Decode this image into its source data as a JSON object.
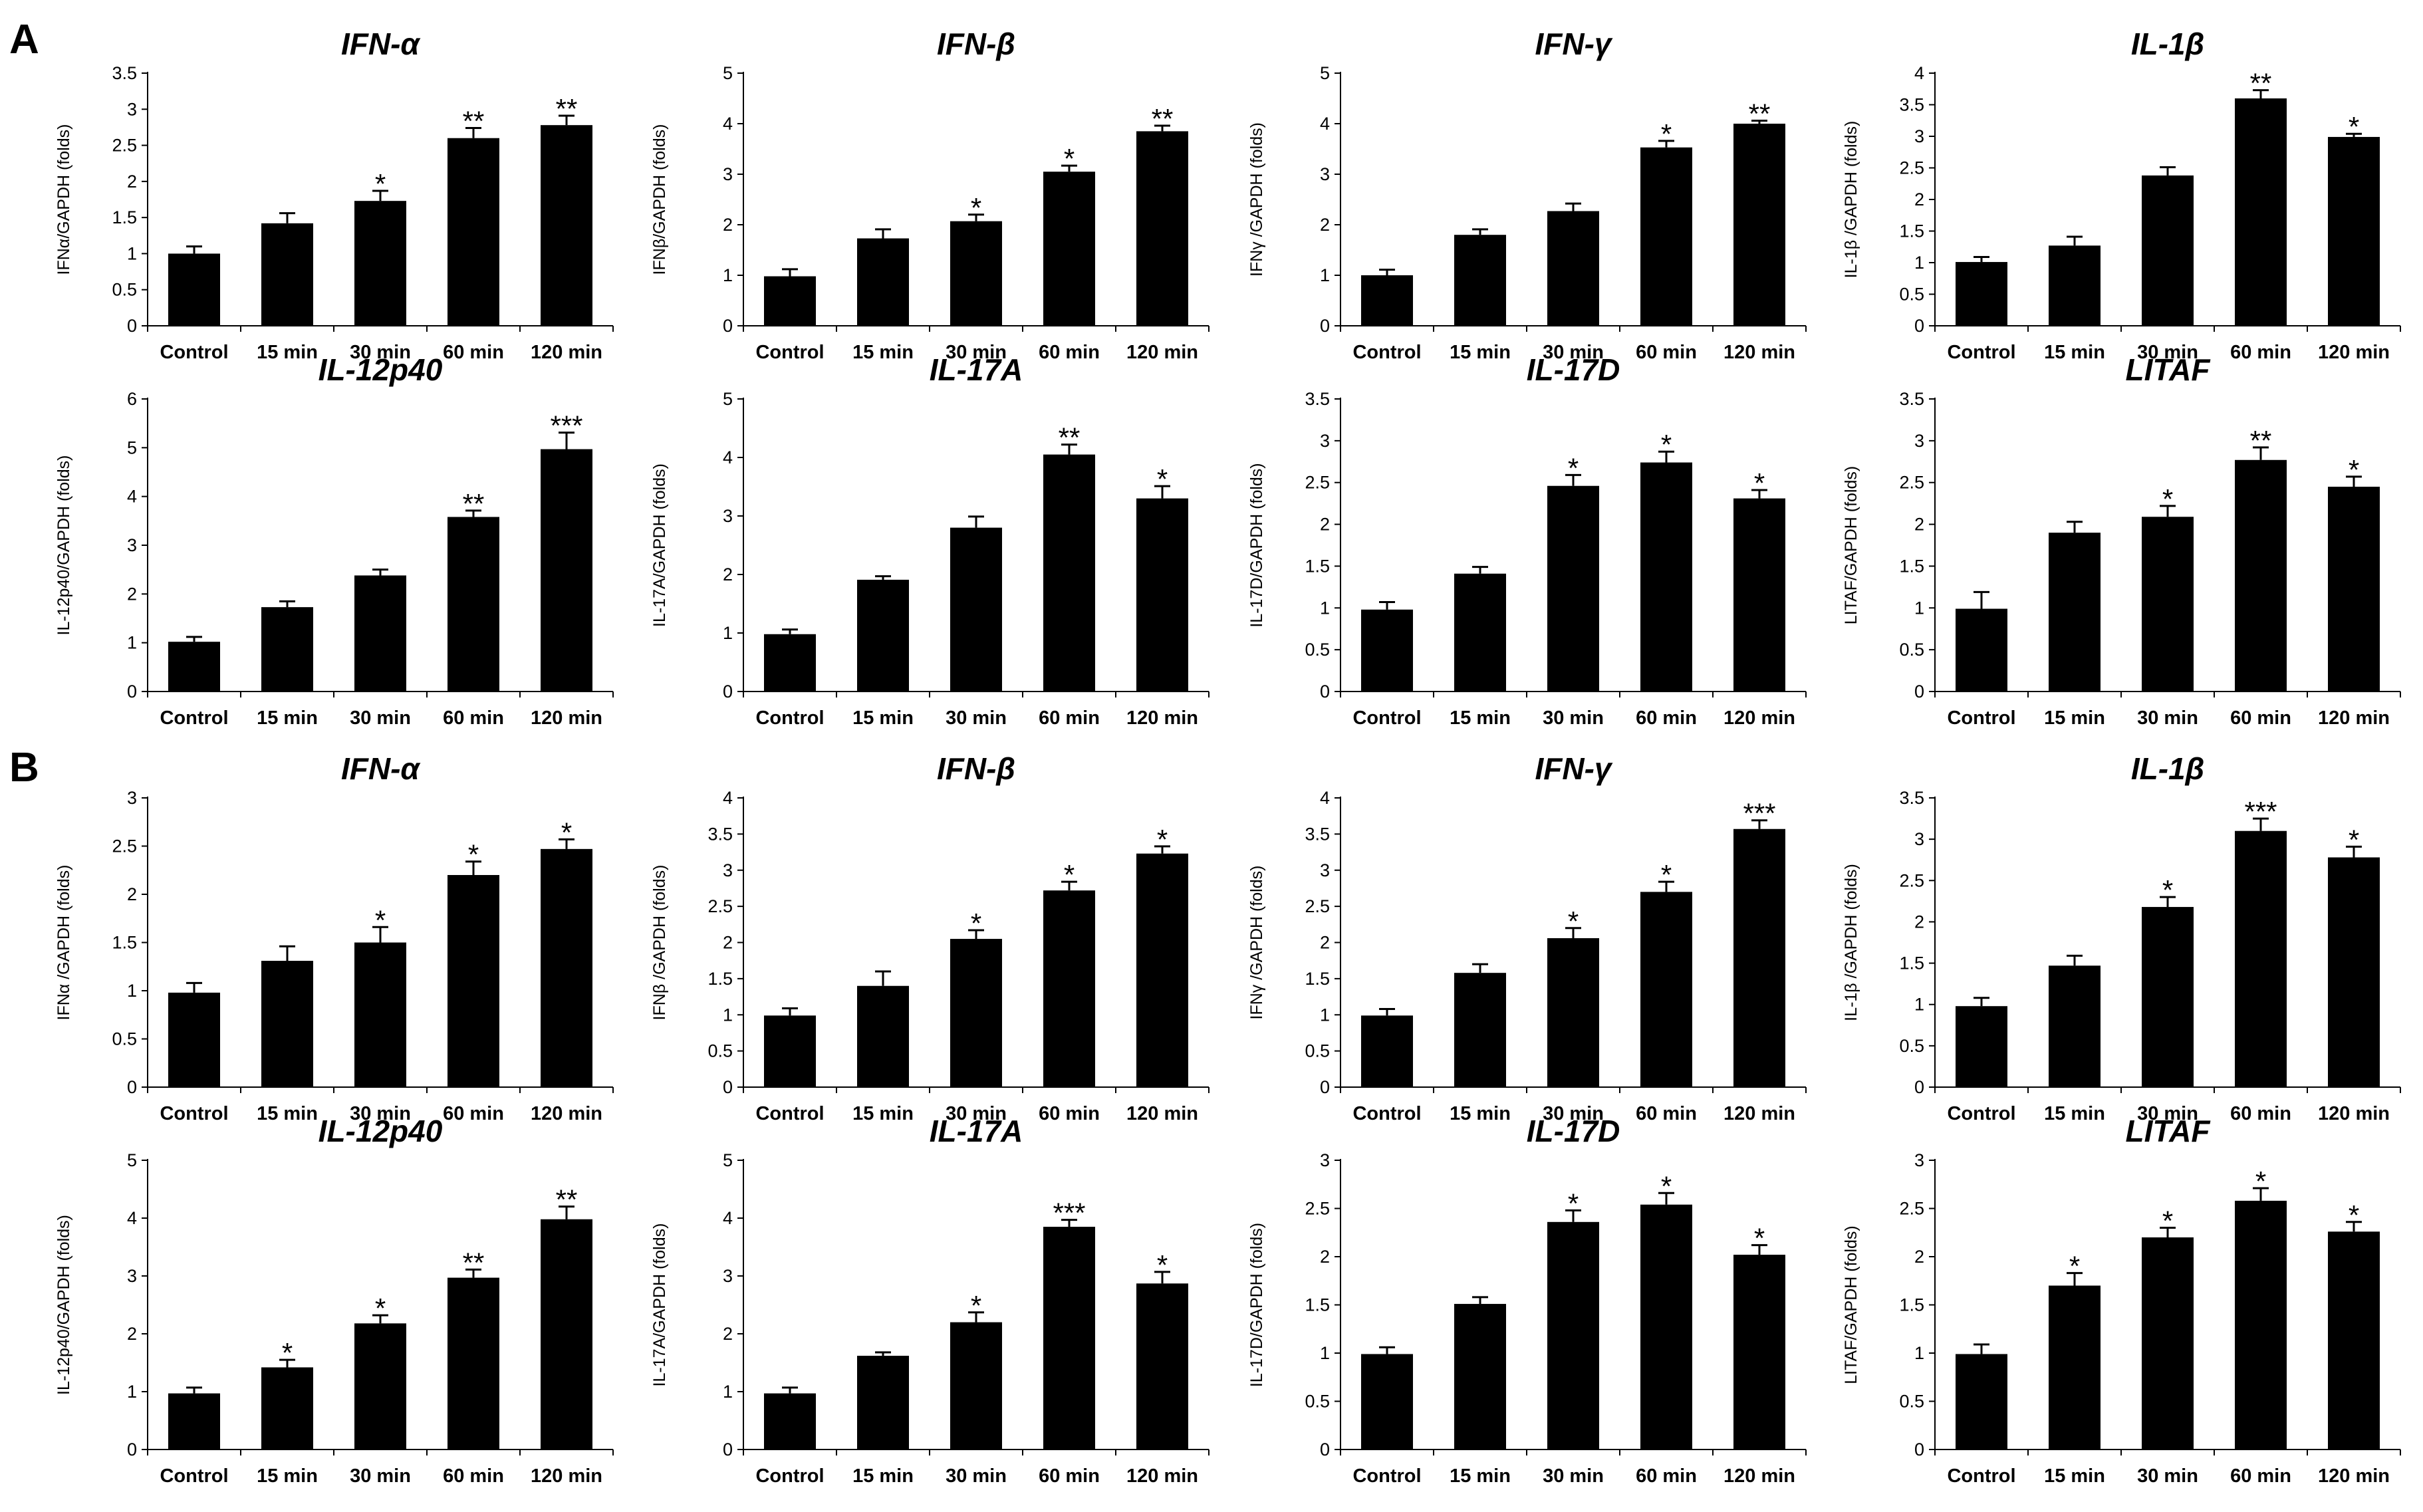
{
  "panel_labels": [
    "A",
    "B"
  ],
  "chart_data": [
    {
      "type": "bar",
      "panel": "A",
      "title": "IFN-α",
      "ylabel": "IFNα/GAPDH (folds)",
      "ylim": [
        0,
        3.5
      ],
      "ytick_step": 0.5,
      "yticks": [
        "0",
        "0.5",
        "1",
        "1.5",
        "2",
        "2.5",
        "3",
        "3.5"
      ],
      "categories": [
        "Control",
        "15 min",
        "30 min",
        "60 min",
        "120 min"
      ],
      "values": [
        1.0,
        1.42,
        1.73,
        2.6,
        2.78
      ],
      "errors": [
        0.1,
        0.14,
        0.14,
        0.14,
        0.13
      ],
      "significance": [
        "",
        "",
        "*",
        "**",
        "**"
      ]
    },
    {
      "type": "bar",
      "panel": "A",
      "title": "IFN-β",
      "ylabel": "IFNβ/GAPDH (folds)",
      "ylim": [
        0,
        5
      ],
      "ytick_step": 1,
      "yticks": [
        "0",
        "1",
        "2",
        "3",
        "4",
        "5"
      ],
      "categories": [
        "Control",
        "15 min",
        "30 min",
        "60 min",
        "120 min"
      ],
      "values": [
        0.98,
        1.73,
        2.07,
        3.05,
        3.85
      ],
      "errors": [
        0.14,
        0.18,
        0.13,
        0.12,
        0.11
      ],
      "significance": [
        "",
        "",
        "*",
        "*",
        "**"
      ]
    },
    {
      "type": "bar",
      "panel": "A",
      "title": "IFN-γ",
      "ylabel": "IFNγ /GAPDH (folds)",
      "ylim": [
        0,
        5
      ],
      "ytick_step": 1,
      "yticks": [
        "0",
        "1",
        "2",
        "3",
        "4",
        "5"
      ],
      "categories": [
        "Control",
        "15 min",
        "30 min",
        "60 min",
        "120 min"
      ],
      "values": [
        1.0,
        1.8,
        2.27,
        3.53,
        4.0
      ],
      "errors": [
        0.11,
        0.11,
        0.15,
        0.13,
        0.06
      ],
      "significance": [
        "",
        "",
        "",
        "*",
        "**"
      ]
    },
    {
      "type": "bar",
      "panel": "A",
      "title": "IL-1β",
      "ylabel": "IL-1β /GAPDH (folds)",
      "ylim": [
        0,
        4
      ],
      "ytick_step": 0.5,
      "yticks": [
        "0",
        "0.5",
        "1",
        "1.5",
        "2",
        "2.5",
        "3",
        "3.5",
        "4"
      ],
      "categories": [
        "Control",
        "15 min",
        "30 min",
        "60 min",
        "120 min"
      ],
      "values": [
        1.01,
        1.27,
        2.38,
        3.6,
        2.99
      ],
      "errors": [
        0.08,
        0.14,
        0.13,
        0.13,
        0.05
      ],
      "significance": [
        "",
        "",
        "",
        "**",
        "*"
      ]
    },
    {
      "type": "bar",
      "panel": "A",
      "title": "IL-12p40",
      "ylabel": "IL-12p40/GAPDH (folds)",
      "ylim": [
        0,
        6
      ],
      "ytick_step": 1,
      "yticks": [
        "0",
        "1",
        "2",
        "3",
        "4",
        "5",
        "6"
      ],
      "categories": [
        "Control",
        "15 min",
        "30 min",
        "60 min",
        "120 min"
      ],
      "values": [
        1.02,
        1.73,
        2.38,
        3.58,
        4.97
      ],
      "errors": [
        0.1,
        0.12,
        0.12,
        0.13,
        0.34
      ],
      "significance": [
        "",
        "",
        "",
        "**",
        "***"
      ]
    },
    {
      "type": "bar",
      "panel": "A",
      "title": "IL-17A",
      "ylabel": "IL-17A/GAPDH (folds)",
      "ylim": [
        0,
        5
      ],
      "ytick_step": 1,
      "yticks": [
        "0",
        "1",
        "2",
        "3",
        "4",
        "5"
      ],
      "categories": [
        "Control",
        "15 min",
        "30 min",
        "60 min",
        "120 min"
      ],
      "values": [
        0.98,
        1.91,
        2.8,
        4.05,
        3.3
      ],
      "errors": [
        0.08,
        0.06,
        0.19,
        0.17,
        0.21
      ],
      "significance": [
        "",
        "",
        "",
        "**",
        "*"
      ]
    },
    {
      "type": "bar",
      "panel": "A",
      "title": "IL-17D",
      "ylabel": "IL-17D/GAPDH (folds)",
      "ylim": [
        0,
        3.5
      ],
      "ytick_step": 0.5,
      "yticks": [
        "0",
        "0.5",
        "1",
        "1.5",
        "2",
        "2.5",
        "3",
        "3.5"
      ],
      "categories": [
        "Control",
        "15 min",
        "30 min",
        "60 min",
        "120 min"
      ],
      "values": [
        0.98,
        1.41,
        2.46,
        2.74,
        2.31
      ],
      "errors": [
        0.09,
        0.08,
        0.13,
        0.13,
        0.1
      ],
      "significance": [
        "",
        "",
        "*",
        "*",
        "*"
      ]
    },
    {
      "type": "bar",
      "panel": "A",
      "title": "LITAF",
      "ylabel": "LITAF/GAPDH (folds)",
      "ylim": [
        0,
        3.5
      ],
      "ytick_step": 0.5,
      "yticks": [
        "0",
        "0.5",
        "1",
        "1.5",
        "2",
        "2.5",
        "3",
        "3.5"
      ],
      "categories": [
        "Control",
        "15 min",
        "30 min",
        "60 min",
        "120 min"
      ],
      "values": [
        0.99,
        1.9,
        2.09,
        2.77,
        2.45
      ],
      "errors": [
        0.2,
        0.13,
        0.13,
        0.15,
        0.12
      ],
      "significance": [
        "",
        "",
        "*",
        "**",
        "*"
      ]
    },
    {
      "type": "bar",
      "panel": "B",
      "title": "IFN-α",
      "ylabel": "IFNα /GAPDH (folds)",
      "ylim": [
        0,
        3
      ],
      "ytick_step": 0.5,
      "yticks": [
        "0",
        "0.5",
        "1",
        "1.5",
        "2",
        "2.5",
        "3"
      ],
      "categories": [
        "Control",
        "15 min",
        "30 min",
        "60 min",
        "120 min"
      ],
      "values": [
        0.98,
        1.31,
        1.5,
        2.2,
        2.47
      ],
      "errors": [
        0.1,
        0.15,
        0.16,
        0.14,
        0.1
      ],
      "significance": [
        "",
        "",
        "*",
        "*",
        "*"
      ]
    },
    {
      "type": "bar",
      "panel": "B",
      "title": "IFN-β",
      "ylabel": "IFNβ /GAPDH (folds)",
      "ylim": [
        0,
        4
      ],
      "ytick_step": 0.5,
      "yticks": [
        "0",
        "0.5",
        "1",
        "1.5",
        "2",
        "2.5",
        "3",
        "3.5",
        "4"
      ],
      "categories": [
        "Control",
        "15 min",
        "30 min",
        "60 min",
        "120 min"
      ],
      "values": [
        0.99,
        1.4,
        2.05,
        2.72,
        3.23
      ],
      "errors": [
        0.1,
        0.2,
        0.12,
        0.12,
        0.1
      ],
      "significance": [
        "",
        "",
        "*",
        "*",
        "*"
      ]
    },
    {
      "type": "bar",
      "panel": "B",
      "title": "IFN-γ",
      "ylabel": "IFNγ /GAPDH (folds)",
      "ylim": [
        0,
        4
      ],
      "ytick_step": 0.5,
      "yticks": [
        "0",
        "0.5",
        "1",
        "1.5",
        "2",
        "2.5",
        "3",
        "3.5",
        "4"
      ],
      "categories": [
        "Control",
        "15 min",
        "30 min",
        "60 min",
        "120 min"
      ],
      "values": [
        0.99,
        1.58,
        2.06,
        2.7,
        3.57
      ],
      "errors": [
        0.09,
        0.12,
        0.14,
        0.14,
        0.12
      ],
      "significance": [
        "",
        "",
        "*",
        "*",
        "***"
      ]
    },
    {
      "type": "bar",
      "panel": "B",
      "title": "IL-1β",
      "ylabel": "IL-1β /GAPDH (folds)",
      "ylim": [
        0,
        3.5
      ],
      "ytick_step": 0.5,
      "yticks": [
        "0",
        "0.5",
        "1",
        "1.5",
        "2",
        "2.5",
        "3",
        "3.5"
      ],
      "categories": [
        "Control",
        "15 min",
        "30 min",
        "60 min",
        "120 min"
      ],
      "values": [
        0.98,
        1.47,
        2.18,
        3.1,
        2.78
      ],
      "errors": [
        0.1,
        0.12,
        0.12,
        0.15,
        0.13
      ],
      "significance": [
        "",
        "",
        "*",
        "***",
        "*"
      ]
    },
    {
      "type": "bar",
      "panel": "B",
      "title": "IL-12p40",
      "ylabel": "IL-12p40/GAPDH (folds)",
      "ylim": [
        0,
        5
      ],
      "ytick_step": 1,
      "yticks": [
        "0",
        "1",
        "2",
        "3",
        "4",
        "5"
      ],
      "categories": [
        "Control",
        "15 min",
        "30 min",
        "60 min",
        "120 min"
      ],
      "values": [
        0.97,
        1.42,
        2.18,
        2.97,
        3.98
      ],
      "errors": [
        0.1,
        0.13,
        0.14,
        0.14,
        0.22
      ],
      "significance": [
        "",
        "*",
        "*",
        "**",
        "**"
      ]
    },
    {
      "type": "bar",
      "panel": "B",
      "title": "IL-17A",
      "ylabel": "IL-17A/GAPDH (folds)",
      "ylim": [
        0,
        5
      ],
      "ytick_step": 1,
      "yticks": [
        "0",
        "1",
        "2",
        "3",
        "4",
        "5"
      ],
      "categories": [
        "Control",
        "15 min",
        "30 min",
        "60 min",
        "120 min"
      ],
      "values": [
        0.97,
        1.62,
        2.2,
        3.85,
        2.87
      ],
      "errors": [
        0.1,
        0.06,
        0.17,
        0.12,
        0.2
      ],
      "significance": [
        "",
        "",
        "*",
        "***",
        "*"
      ]
    },
    {
      "type": "bar",
      "panel": "B",
      "title": "IL-17D",
      "ylabel": "IL-17D/GAPDH (folds)",
      "ylim": [
        0,
        3
      ],
      "ytick_step": 0.5,
      "yticks": [
        "0",
        "0.5",
        "1",
        "1.5",
        "2",
        "2.5",
        "3"
      ],
      "categories": [
        "Control",
        "15 min",
        "30 min",
        "60 min",
        "120 min"
      ],
      "values": [
        0.99,
        1.51,
        2.36,
        2.54,
        2.02
      ],
      "errors": [
        0.07,
        0.07,
        0.12,
        0.12,
        0.1
      ],
      "significance": [
        "",
        "",
        "*",
        "*",
        "*"
      ]
    },
    {
      "type": "bar",
      "panel": "B",
      "title": "LITAF",
      "ylabel": "LITAF/GAPDH (folds)",
      "ylim": [
        0,
        3
      ],
      "ytick_step": 0.5,
      "yticks": [
        "0",
        "0.5",
        "1",
        "1.5",
        "2",
        "2.5",
        "3"
      ],
      "categories": [
        "Control",
        "15 min",
        "30 min",
        "60 min",
        "120 min"
      ],
      "values": [
        0.99,
        1.7,
        2.2,
        2.58,
        2.26
      ],
      "errors": [
        0.1,
        0.13,
        0.1,
        0.13,
        0.1
      ],
      "significance": [
        "",
        "*",
        "*",
        "*",
        "*"
      ]
    }
  ]
}
